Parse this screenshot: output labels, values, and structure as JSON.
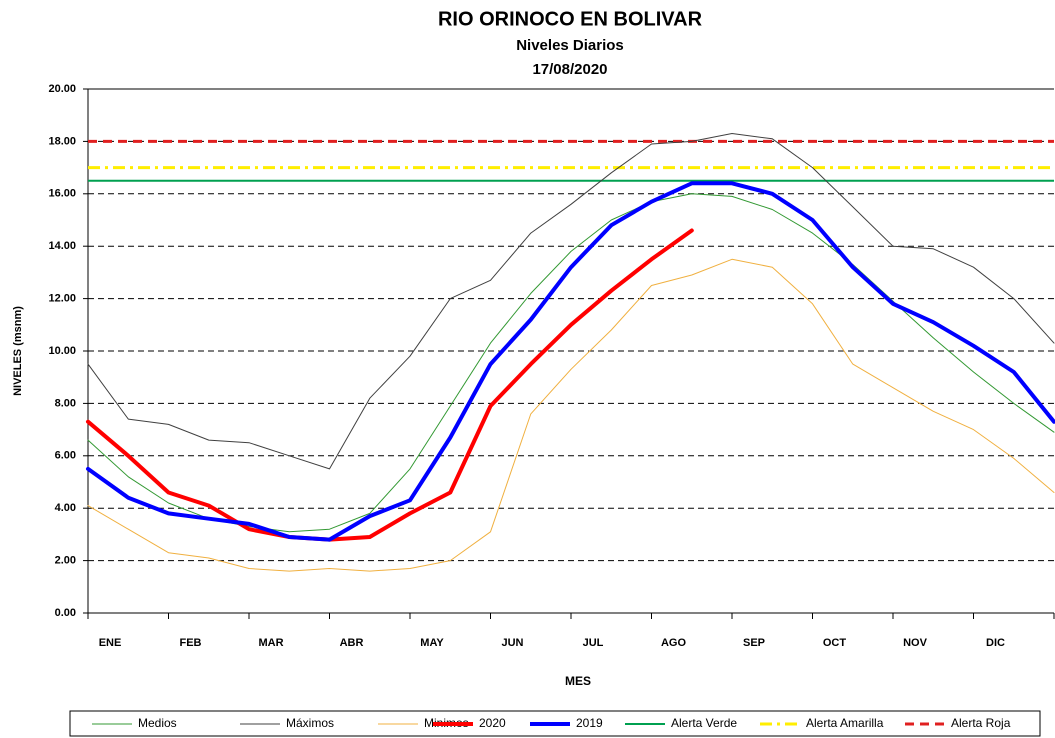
{
  "chart_data": {
    "type": "line",
    "title": "RIO ORINOCO EN BOLIVAR",
    "subtitle": "Niveles  Diarios",
    "date": "17/08/2020",
    "ylabel": "NIVELES  (msnm)",
    "xlabel": "MES",
    "categories": [
      "ENE",
      null,
      "FEB",
      null,
      "MAR",
      null,
      "ABR",
      null,
      "MAY",
      null,
      "JUN",
      null,
      "JUL",
      null,
      "AGO",
      null,
      "SEP",
      null,
      "OCT",
      null,
      "NOV",
      null,
      "DIC",
      null,
      null
    ],
    "ylim": [
      0,
      20
    ],
    "yticks": [
      {
        "value": 0,
        "label": "0.00"
      },
      {
        "value": 2,
        "label": "2.00"
      },
      {
        "value": 4,
        "label": "4.00"
      },
      {
        "value": 6,
        "label": "6.00"
      },
      {
        "value": 8,
        "label": "8.00"
      },
      {
        "value": 10,
        "label": "10.00"
      },
      {
        "value": 12,
        "label": "12.00"
      },
      {
        "value": 14,
        "label": "14.00"
      },
      {
        "value": 16,
        "label": "16.00"
      },
      {
        "value": 18,
        "label": "18.00"
      },
      {
        "value": 20,
        "label": "20.00"
      }
    ],
    "grid": true,
    "series": [
      {
        "name": "Medios",
        "color": "#339933",
        "linewidth": 1,
        "values": [
          6.6,
          5.2,
          4.2,
          3.6,
          3.3,
          3.1,
          3.2,
          3.8,
          5.5,
          7.9,
          10.3,
          12.2,
          13.8,
          15.0,
          15.7,
          16.0,
          15.9,
          15.4,
          14.5,
          13.3,
          11.9,
          10.5,
          9.2,
          8.0,
          6.9
        ]
      },
      {
        "name": "Máximos",
        "color": "#404040",
        "linewidth": 1,
        "values": [
          9.5,
          7.4,
          7.2,
          6.6,
          6.5,
          6.0,
          5.5,
          8.2,
          9.8,
          12.0,
          12.7,
          14.5,
          15.6,
          16.8,
          17.9,
          18.0,
          18.3,
          18.1,
          17.0,
          15.5,
          14.0,
          13.9,
          13.2,
          12.0,
          10.3
        ]
      },
      {
        "name": "Minimos",
        "color": "#f0b040",
        "linewidth": 1,
        "values": [
          4.1,
          3.2,
          2.3,
          2.1,
          1.7,
          1.6,
          1.7,
          1.6,
          1.7,
          2.0,
          3.1,
          7.6,
          9.3,
          10.8,
          12.5,
          12.9,
          13.5,
          13.2,
          11.8,
          9.5,
          8.6,
          7.7,
          7.0,
          5.9,
          4.6
        ]
      },
      {
        "name": "2020",
        "color": "#ff0000",
        "linewidth": 4,
        "values": [
          7.3,
          6.0,
          4.6,
          4.1,
          3.2,
          2.9,
          2.8,
          2.9,
          3.8,
          4.6,
          7.9,
          9.5,
          11.0,
          12.3,
          13.5,
          14.6,
          null,
          null,
          null,
          null,
          null,
          null,
          null,
          null,
          null
        ]
      },
      {
        "name": "2019",
        "color": "#0000ff",
        "linewidth": 4,
        "values": [
          5.5,
          4.4,
          3.8,
          3.6,
          3.4,
          2.9,
          2.8,
          3.7,
          4.3,
          6.7,
          9.5,
          11.2,
          13.2,
          14.8,
          15.7,
          16.4,
          16.4,
          16.0,
          15.0,
          13.2,
          11.8,
          11.1,
          10.2,
          9.2,
          7.3
        ]
      }
    ],
    "hlines": [
      {
        "name": "Alerta Verde",
        "value": 16.5,
        "color": "#00a050",
        "dash": "solid"
      },
      {
        "name": "Alerta Amarilla",
        "value": 17,
        "color": "#ffee00",
        "dash": "dashdot"
      },
      {
        "name": "Alerta Roja",
        "value": 18,
        "color": "#e02020",
        "dash": "dashed"
      }
    ]
  }
}
